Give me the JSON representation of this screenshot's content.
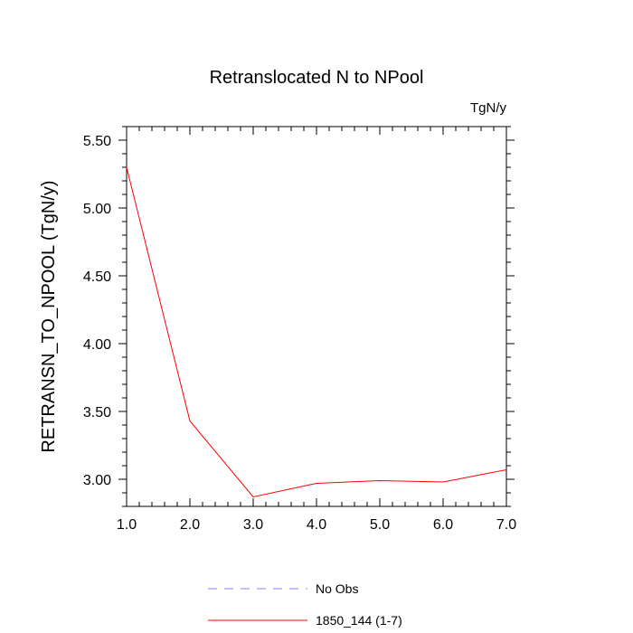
{
  "chart_data": {
    "type": "line",
    "title": "Retranslocated N to NPool",
    "units": "TgN/y",
    "xlabel": "",
    "ylabel": "RETRANSN_TO_NPOOL  (TgN/y)",
    "xlim": [
      1.0,
      7.0
    ],
    "ylim": [
      2.8,
      5.6
    ],
    "x_ticks": [
      "1.0",
      "2.0",
      "3.0",
      "4.0",
      "5.0",
      "6.0",
      "7.0"
    ],
    "y_ticks": [
      "3.00",
      "3.50",
      "4.00",
      "4.50",
      "5.00",
      "5.50"
    ],
    "grid": false,
    "legend_position": "bottom",
    "series": [
      {
        "name": "No Obs",
        "color": "#8080ff",
        "dash": "dashed",
        "x": [],
        "y": []
      },
      {
        "name": "1850_144 (1-7)",
        "color": "#ff0000",
        "dash": "solid",
        "x": [
          1,
          2,
          3,
          4,
          5,
          6,
          7
        ],
        "y": [
          5.3,
          3.43,
          2.87,
          2.97,
          2.99,
          2.98,
          3.07
        ]
      }
    ]
  }
}
